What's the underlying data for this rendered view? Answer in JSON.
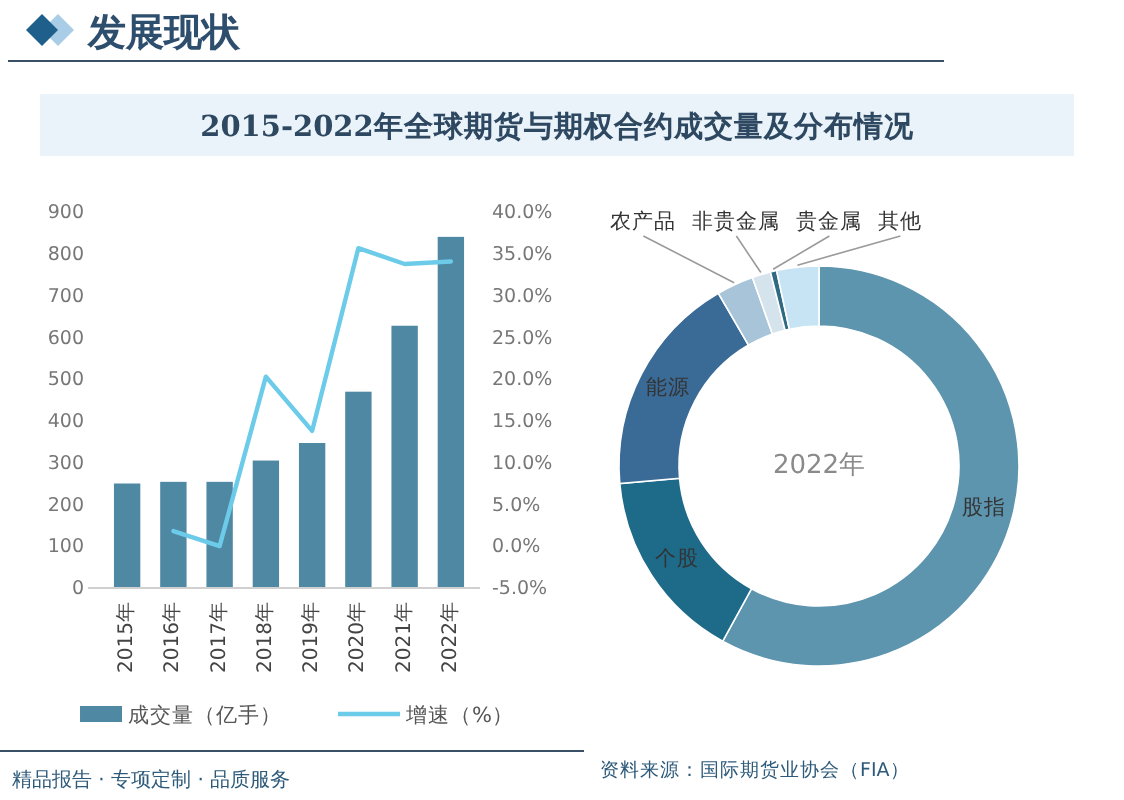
{
  "chart_data": [
    {
      "type": "bar",
      "title": "2015-2022年全球期货与期权合约成交量及分布情况",
      "categories": [
        "2015年",
        "2016年",
        "2017年",
        "2018年",
        "2019年",
        "2020年",
        "2021年",
        "2022年"
      ],
      "series": [
        {
          "name": "成交量（亿手）",
          "type": "bar",
          "color": "#4e88a3",
          "values": [
            248,
            252,
            252,
            303,
            345,
            468,
            626,
            839
          ]
        },
        {
          "name": "增速（%）",
          "type": "line",
          "axis": "y2",
          "color": "#6ccbe9",
          "values": [
            null,
            1.7,
            -0.1,
            20.2,
            13.7,
            35.6,
            33.7,
            34.0
          ]
        }
      ],
      "ylim": [
        0,
        900
      ],
      "yticks": [
        0,
        100,
        200,
        300,
        400,
        500,
        600,
        700,
        800,
        900
      ],
      "y2lim": [
        -5,
        40
      ],
      "y2ticks": [
        {
          "value": -5,
          "label": "-5.0%"
        },
        {
          "value": 0,
          "label": "0.0%"
        },
        {
          "value": 5,
          "label": "5.0%"
        },
        {
          "value": 10,
          "label": "10.0%"
        },
        {
          "value": 15,
          "label": "15.0%"
        },
        {
          "value": 20,
          "label": "20.0%"
        },
        {
          "value": 25,
          "label": "25.0%"
        },
        {
          "value": 30,
          "label": "30.0%"
        },
        {
          "value": 35,
          "label": "35.0%"
        },
        {
          "value": 40,
          "label": "40.0%"
        }
      ],
      "legend": "bottom",
      "annotations": [
        "发展现状",
        "精品报告 · 专项定制 · 品质服务",
        "资料来源：国际期货业协会（FIA）"
      ]
    },
    {
      "type": "donut",
      "title": "2022年",
      "categories": [
        "股指",
        "个股",
        "能源",
        "农产品",
        "非贵金属",
        "贵金属",
        "其他"
      ],
      "values": [
        58,
        15.6,
        18,
        3,
        1.5,
        0.5,
        3.4
      ],
      "colors": [
        "#5d94ae",
        "#1e6a89",
        "#3a6a96",
        "#a7c4d8",
        "#d5e3ec",
        "#2f6a85",
        "#c7e4f4"
      ]
    }
  ]
}
